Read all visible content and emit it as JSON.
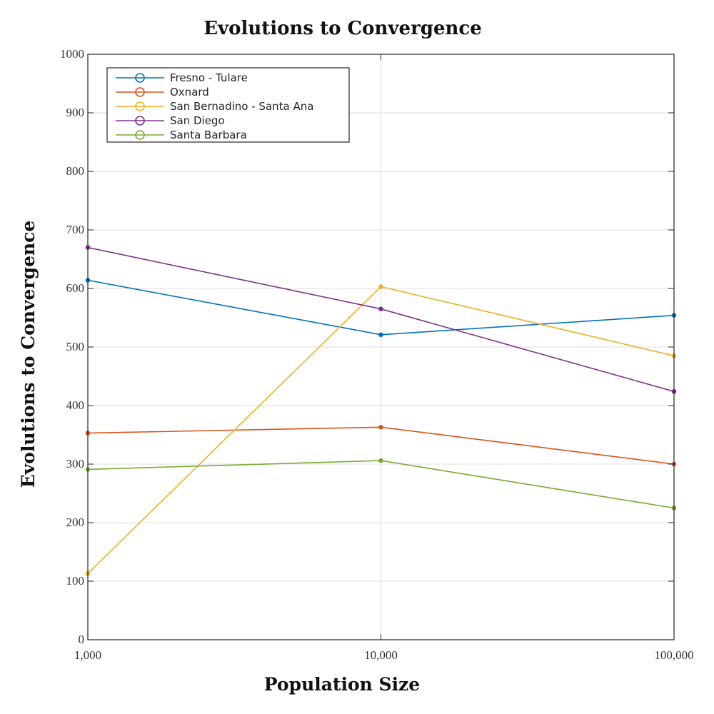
{
  "chart_data": {
    "type": "line",
    "title": "Evolutions to Convergence",
    "xlabel": "Population Size",
    "ylabel": "Evolutions to Convergence",
    "x": [
      1000,
      10000,
      100000
    ],
    "x_tick_labels": [
      "1,000",
      "10,000",
      "100,000"
    ],
    "x_scale": "log",
    "ylim": [
      0,
      1000
    ],
    "y_ticks": [
      0,
      100,
      200,
      300,
      400,
      500,
      600,
      700,
      800,
      900,
      1000
    ],
    "grid": true,
    "legend_position": "top-left",
    "series": [
      {
        "name": "Fresno - Tulare",
        "color": "#0072BD",
        "values": [
          614,
          521,
          554
        ]
      },
      {
        "name": "Oxnard",
        "color": "#D95319",
        "values": [
          353,
          363,
          300
        ]
      },
      {
        "name": "San Bernadino - Santa Ana",
        "color": "#EDB120",
        "values": [
          113,
          603,
          485
        ]
      },
      {
        "name": "San Diego",
        "color": "#7E2F8E",
        "values": [
          670,
          565,
          424
        ]
      },
      {
        "name": "Santa Barbara",
        "color": "#77AC30",
        "values": [
          291,
          306,
          225
        ]
      }
    ]
  }
}
